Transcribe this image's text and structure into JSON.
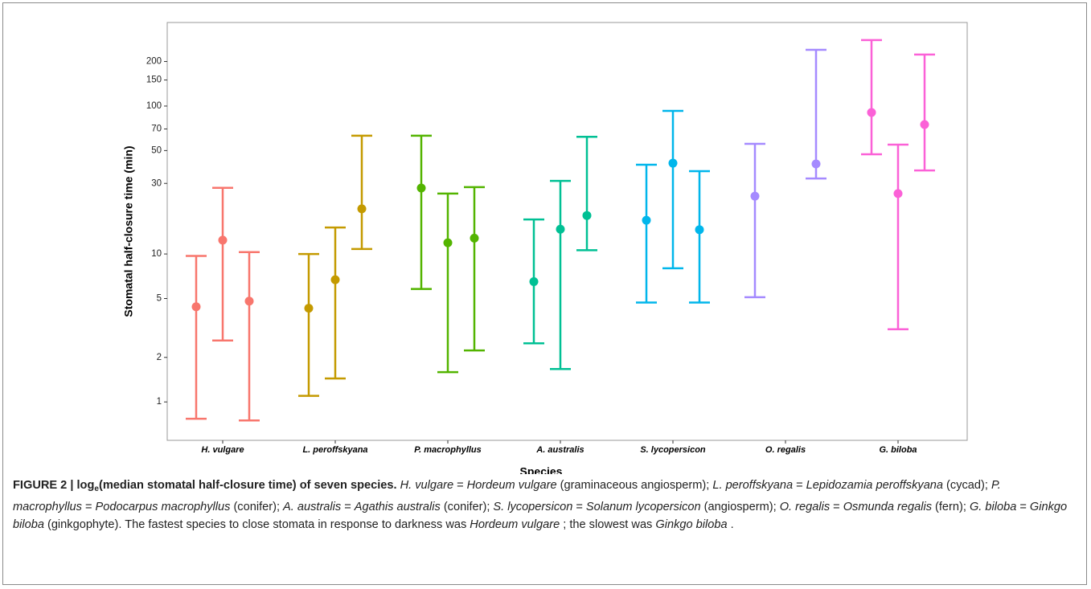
{
  "chart_data": {
    "type": "errorbar",
    "x_label": "Species",
    "y_label": "Stomatal half-closure time (min)",
    "log_scale": true,
    "ylim": [
      0.55,
      367
    ],
    "yticks": [
      1,
      2,
      5,
      10,
      30,
      50,
      70,
      100,
      150,
      200
    ],
    "categories": [
      "H. vulgare",
      "L. peroffskyana",
      "P. macrophyllus",
      "A. australis",
      "S. lycopersicon",
      "O. regalis",
      "G. biloba"
    ],
    "groups": [
      {
        "color": "#f8766d",
        "points": [
          {
            "median": 4.4,
            "low": 0.77,
            "high": 9.7
          },
          {
            "median": 12.4,
            "low": 2.6,
            "high": 28
          },
          {
            "median": 4.8,
            "low": 0.75,
            "high": 10.3
          }
        ]
      },
      {
        "color": "#c49a00",
        "points": [
          {
            "median": 4.3,
            "low": 1.1,
            "high": 10
          },
          {
            "median": 6.7,
            "low": 1.44,
            "high": 15.1
          },
          {
            "median": 20.2,
            "low": 10.8,
            "high": 63
          }
        ]
      },
      {
        "color": "#53b400",
        "points": [
          {
            "median": 27.9,
            "low": 5.8,
            "high": 63
          },
          {
            "median": 11.9,
            "low": 1.59,
            "high": 25.6
          },
          {
            "median": 12.8,
            "low": 2.23,
            "high": 28.3
          }
        ]
      },
      {
        "color": "#00c094",
        "points": [
          {
            "median": 6.5,
            "low": 2.49,
            "high": 17.1
          },
          {
            "median": 14.7,
            "low": 1.67,
            "high": 31.2
          },
          {
            "median": 18.2,
            "low": 10.6,
            "high": 62
          }
        ]
      },
      {
        "color": "#00b6eb",
        "points": [
          {
            "median": 16.9,
            "low": 4.7,
            "high": 40.1
          },
          {
            "median": 41.1,
            "low": 8,
            "high": 92.8
          },
          {
            "median": 14.6,
            "low": 4.7,
            "high": 36.3
          }
        ]
      },
      {
        "color": "#a58aff",
        "points": [
          {
            "median": 24.6,
            "low": 5.1,
            "high": 55.5
          },
          {
            "median": 40.6,
            "low": 32.4,
            "high": 240
          }
        ]
      },
      {
        "color": "#fb61d7",
        "points": [
          {
            "median": 90.5,
            "low": 47.2,
            "high": 279
          },
          {
            "median": 25.6,
            "low": 3.1,
            "high": 54.8
          },
          {
            "median": 75,
            "low": 36.7,
            "high": 223
          }
        ]
      }
    ]
  },
  "caption": {
    "runs": [
      {
        "text": "FIGURE 2 | log",
        "style": "bold"
      },
      {
        "text": "e",
        "style": "bold-sub"
      },
      {
        "text": "(median stomatal half-closure time) of seven species.",
        "style": "bold"
      },
      {
        "text": "H. vulgare",
        "style": "italic"
      },
      {
        "text": "=",
        "style": "normal"
      },
      {
        "text": "Hordeum vulgare",
        "style": "italic"
      },
      {
        "text": "(graminaceous angiosperm);",
        "style": "normal"
      },
      {
        "text": "L. peroffskyana",
        "style": "italic"
      },
      {
        "text": "=",
        "style": "normal"
      },
      {
        "text": "Lepidozamia peroffskyana",
        "style": "italic"
      },
      {
        "text": "(cycad);",
        "style": "normal"
      },
      {
        "text": "P. macrophyllus",
        "style": "italic"
      },
      {
        "text": "=",
        "style": "normal"
      },
      {
        "text": "Podocarpus macrophyllus",
        "style": "italic"
      },
      {
        "text": "(conifer);",
        "style": "normal"
      },
      {
        "text": "A. australis",
        "style": "italic"
      },
      {
        "text": "=",
        "style": "normal"
      },
      {
        "text": "Agathis australis",
        "style": "italic"
      },
      {
        "text": "(conifer);",
        "style": "normal"
      },
      {
        "text": "S. lycopersicon",
        "style": "italic"
      },
      {
        "text": "=",
        "style": "normal"
      },
      {
        "text": "Solanum lycopersicon",
        "style": "italic"
      },
      {
        "text": "(angiosperm);",
        "style": "normal"
      },
      {
        "text": "O. regalis",
        "style": "italic"
      },
      {
        "text": "=",
        "style": "normal"
      },
      {
        "text": "Osmunda regalis",
        "style": "italic"
      },
      {
        "text": "(fern);",
        "style": "normal"
      },
      {
        "text": "G. biloba",
        "style": "italic"
      },
      {
        "text": "=",
        "style": "normal"
      },
      {
        "text": "Ginkgo biloba",
        "style": "italic"
      },
      {
        "text": "(ginkgophyte). The fastest species to close stomata in response to darkness was",
        "style": "normal"
      },
      {
        "text": "Hordeum vulgare",
        "style": "italic"
      },
      {
        "text": "; the slowest was",
        "style": "normal"
      },
      {
        "text": "Ginkgo biloba",
        "style": "italic"
      },
      {
        "text": ".",
        "style": "normal"
      }
    ]
  }
}
